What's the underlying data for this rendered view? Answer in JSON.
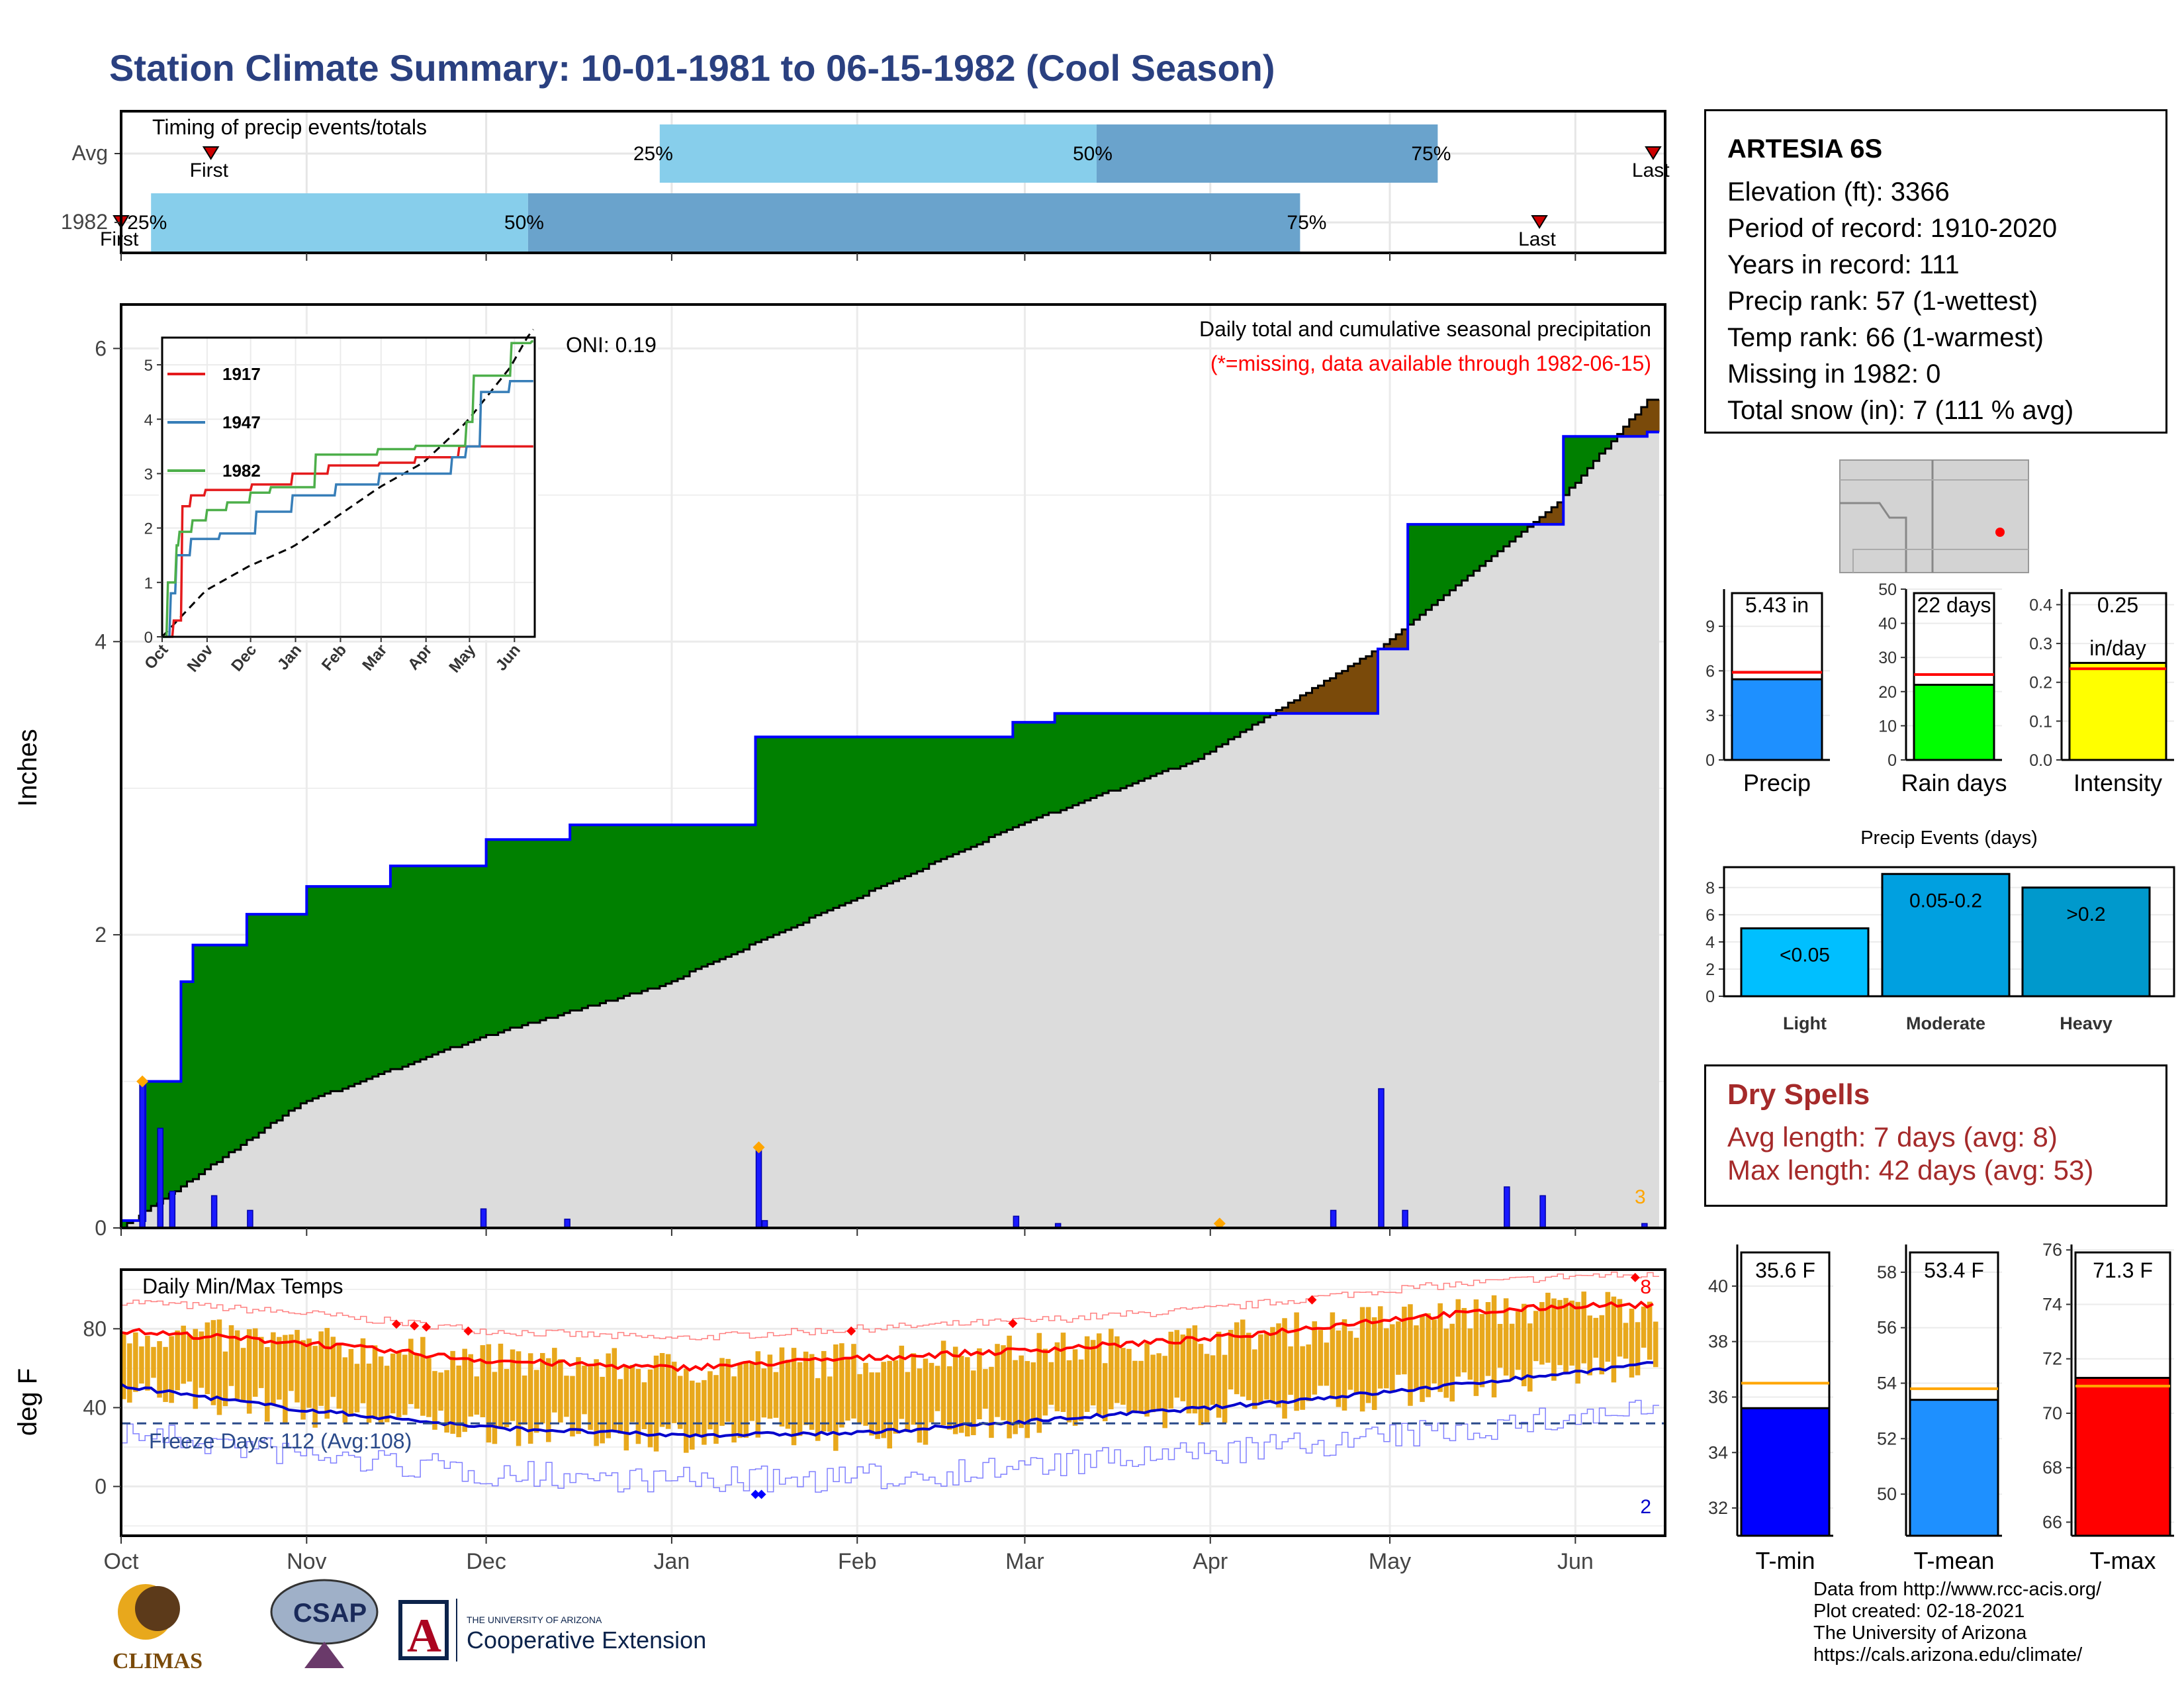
{
  "title": "Station Climate Summary: 10-01-1981 to 06-15-1982 (Cool Season)",
  "colors": {
    "title": "#2a4080",
    "cum_1982": "#0000ff",
    "surplus": "#008000",
    "deficit": "#7a4a0a",
    "avg_fill": "#dcdcdc",
    "daily_bar": "#1a1aff",
    "tmax": "#ff0000",
    "tmin": "#0000cc",
    "temp_bar": "#e8a81c",
    "timing_light": "#87ceeb",
    "timing_dark": "#6aa3cc"
  },
  "timing": {
    "title": "Timing of precip events/totals",
    "rows": [
      {
        "label": "Avg",
        "first_label": "First",
        "last_label": "Last",
        "p25": "25%",
        "p50": "50%",
        "p75": "75%",
        "first_day": 15,
        "p25_day": 90,
        "p50_day": 163,
        "p75_day": 220,
        "last_day": 256
      },
      {
        "label": "1982",
        "first_label": "First",
        "last_label": "Last",
        "p25": "25%",
        "p50": "50%",
        "p75": "75%",
        "first_day": 0,
        "p25_day": 5,
        "p50_day": 68,
        "p75_day": 197,
        "last_day": 237
      }
    ]
  },
  "precip_panel": {
    "ylabel": "Inches",
    "header": "Daily total and cumulative seasonal precipitation",
    "subheader": "(*=missing, data available through 1982-06-15)",
    "oni": "ONI: 0.19",
    "corner_count": "3",
    "yticks": [
      "0",
      "2",
      "4",
      "6"
    ]
  },
  "inset": {
    "legend": [
      "1917",
      "1947",
      "1982"
    ],
    "legend_colors": [
      "#e41a1c",
      "#377eb8",
      "#4daf4a"
    ],
    "yticks": [
      "0",
      "1",
      "2",
      "3",
      "4",
      "5"
    ],
    "xticks": [
      "Oct",
      "Nov",
      "Dec",
      "Jan",
      "Feb",
      "Mar",
      "Apr",
      "May",
      "Jun"
    ]
  },
  "temp_panel": {
    "ylabel": "deg F",
    "header": "Daily Min/Max Temps",
    "freeze": "Freeze Days: 112 (Avg:108)",
    "corner_max": "8",
    "corner_min": "2",
    "yticks": [
      "0",
      "40",
      "80"
    ]
  },
  "months": [
    "Oct",
    "Nov",
    "Dec",
    "Jan",
    "Feb",
    "Mar",
    "Apr",
    "May",
    "Jun"
  ],
  "station": {
    "name": "ARTESIA 6S",
    "lines": [
      "Elevation (ft): 3366",
      "Period of record: 1910-2020",
      "Years in record: 111",
      "Precip rank: 57 (1-wettest)",
      "Temp rank: 66 (1-warmest)",
      "Missing in 1982: 0",
      "Total snow (in): 7 (111 % avg)"
    ]
  },
  "summary_bars": [
    {
      "name": "Precip",
      "value": 5.43,
      "avg": 5.9,
      "label": "5.43 in",
      "yticks": [
        "0",
        "3",
        "6",
        "9"
      ],
      "ymax": 11.5,
      "color": "#1e90ff"
    },
    {
      "name": "Rain days",
      "value": 22,
      "avg": 25,
      "label": "22 days",
      "yticks": [
        "0",
        "10",
        "20",
        "30",
        "40",
        "50"
      ],
      "ymax": 50,
      "color": "#00ff00"
    },
    {
      "name": "Intensity",
      "value": 0.25,
      "avg": 0.235,
      "label": "0.25",
      "label2": "in/day",
      "yticks": [
        "0.0",
        "0.1",
        "0.2",
        "0.3",
        "0.4"
      ],
      "ymax": 0.44,
      "color": "#ffff00"
    }
  ],
  "events": {
    "title": "Precip Events (days)",
    "categories": [
      "Light",
      "Moderate",
      "Heavy"
    ],
    "labels": [
      "<0.05",
      "0.05-0.2",
      ">0.2"
    ],
    "values": [
      5,
      9,
      8
    ],
    "colors": [
      "#00bfff",
      "#00a0e0",
      "#0099cc"
    ],
    "yticks": [
      "0",
      "2",
      "4",
      "6",
      "8"
    ]
  },
  "dry_spells": {
    "title": "Dry Spells",
    "avg": "Avg length: 7 days (avg: 8)",
    "max": "Max length: 42 days (avg: 53)"
  },
  "temp_bars": [
    {
      "name": "T-min",
      "value": 35.6,
      "avg": 36.5,
      "label": "35.6 F",
      "ymin": 31,
      "ymax": 41.5,
      "yticks": [
        "32",
        "34",
        "36",
        "38",
        "40"
      ],
      "color": "#0000ff"
    },
    {
      "name": "T-mean",
      "value": 53.4,
      "avg": 53.8,
      "label": "53.4 F",
      "ymin": 48.5,
      "ymax": 59,
      "yticks": [
        "50",
        "52",
        "54",
        "56",
        "58"
      ],
      "color": "#1e90ff"
    },
    {
      "name": "T-max",
      "value": 71.3,
      "avg": 71.0,
      "label": "71.3 F",
      "ymin": 65.5,
      "ymax": 76.2,
      "yticks": [
        "66",
        "68",
        "70",
        "72",
        "74",
        "76"
      ],
      "color": "#ff0000"
    }
  ],
  "credit": [
    "Data from http://www.rcc-acis.org/",
    "Plot created: 02-18-2021",
    "The University of Arizona",
    "https://cals.arizona.edu/climate/"
  ],
  "logos": {
    "climas": "CLIMAS",
    "csap": "CSAP",
    "ua_small": "THE UNIVERSITY OF ARIZONA",
    "ua_big": "Cooperative Extension"
  },
  "chart_data": [
    {
      "type": "area",
      "title": "Daily total and cumulative seasonal precipitation",
      "ylabel": "Inches",
      "ylim": [
        0,
        6.3
      ],
      "x_months": [
        "Oct",
        "Nov",
        "Dec",
        "Jan",
        "Feb",
        "Mar",
        "Apr",
        "May",
        "Jun"
      ],
      "cumulative_1982": [
        [
          0,
          0.05
        ],
        [
          4,
          1.0
        ],
        [
          10,
          1.68
        ],
        [
          12,
          1.93
        ],
        [
          21,
          2.14
        ],
        [
          31,
          2.33
        ],
        [
          45,
          2.47
        ],
        [
          61,
          2.65
        ],
        [
          75,
          2.75
        ],
        [
          106,
          3.35
        ],
        [
          149,
          3.45
        ],
        [
          156,
          3.51
        ],
        [
          175,
          3.51
        ],
        [
          193,
          3.51
        ],
        [
          210,
          3.95
        ],
        [
          215,
          4.8
        ],
        [
          241,
          5.4
        ],
        [
          255,
          5.43
        ]
      ],
      "cumulative_avg": [
        [
          0,
          0.0
        ],
        [
          30,
          0.85
        ],
        [
          60,
          1.3
        ],
        [
          90,
          1.65
        ],
        [
          120,
          2.2
        ],
        [
          150,
          2.75
        ],
        [
          180,
          3.2
        ],
        [
          210,
          3.95
        ],
        [
          240,
          4.95
        ],
        [
          255,
          5.65
        ]
      ],
      "daily_precip": [
        [
          3,
          1.0
        ],
        [
          6,
          0.68
        ],
        [
          8,
          0.25
        ],
        [
          15,
          0.22
        ],
        [
          21,
          0.12
        ],
        [
          60,
          0.13
        ],
        [
          74,
          0.06
        ],
        [
          106,
          0.55
        ],
        [
          107,
          0.05
        ],
        [
          149,
          0.08
        ],
        [
          156,
          0.03
        ],
        [
          202,
          0.12
        ],
        [
          210,
          0.95
        ],
        [
          214,
          0.12
        ],
        [
          231,
          0.28
        ],
        [
          237,
          0.22
        ],
        [
          254,
          0.03
        ]
      ]
    },
    {
      "type": "line",
      "title": "Daily Min/Max Temps",
      "ylabel": "deg F",
      "ylim": [
        -25,
        110
      ],
      "series": [
        {
          "name": "Avg Tmax",
          "x_days": [
            0,
            30,
            61,
            92,
            123,
            151,
            182,
            212,
            243,
            255
          ],
          "values": [
            79,
            73,
            64,
            60,
            65,
            69,
            75,
            85,
            92,
            92
          ]
        },
        {
          "name": "Avg Tmin",
          "x_days": [
            0,
            30,
            61,
            92,
            123,
            151,
            182,
            212,
            243,
            255
          ],
          "values": [
            51,
            39,
            30,
            26,
            27,
            33,
            40,
            48,
            58,
            62
          ]
        }
      ],
      "freeze_line": 32
    },
    {
      "type": "bar",
      "title": "Precip Events (days)",
      "categories": [
        "Light",
        "Moderate",
        "Heavy"
      ],
      "values": [
        5,
        9,
        8
      ]
    }
  ]
}
